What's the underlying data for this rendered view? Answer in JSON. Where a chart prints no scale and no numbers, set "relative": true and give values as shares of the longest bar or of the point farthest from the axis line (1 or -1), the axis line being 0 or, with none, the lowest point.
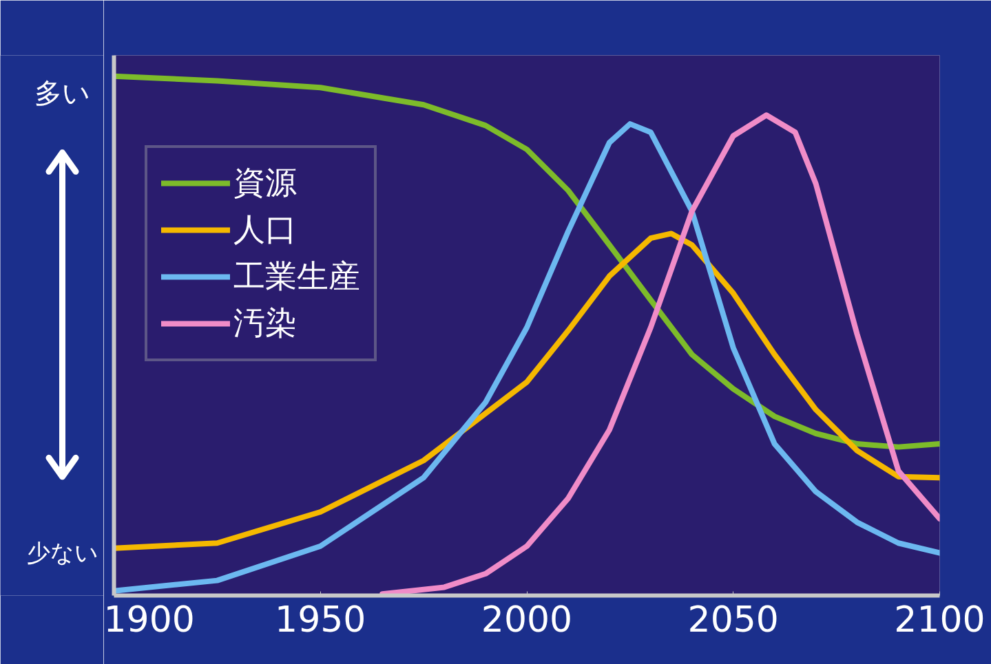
{
  "chart_data": {
    "type": "line",
    "relative": true,
    "xlim": [
      1900,
      2100
    ],
    "xticks": [
      1900,
      1950,
      2000,
      2050,
      2100
    ],
    "legend": "top left",
    "grid": false,
    "marker": "none",
    "line_style": "solid",
    "annotations": [
      "多い",
      "少ない"
    ],
    "series": [
      {
        "name": "資源",
        "color": "#7dbb2a",
        "x": [
          1900,
          1925,
          1950,
          1975,
          1990,
          2000,
          2010,
          2020,
          2030,
          2040,
          2050,
          2060,
          2070,
          2080,
          2090,
          2100
        ],
        "values": [
          1.0,
          0.991,
          0.978,
          0.945,
          0.905,
          0.859,
          0.78,
          0.675,
          0.569,
          0.464,
          0.398,
          0.345,
          0.312,
          0.292,
          0.286,
          0.292
        ]
      },
      {
        "name": "人口",
        "color": "#f5b800",
        "x": [
          1900,
          1925,
          1950,
          1975,
          2000,
          2010,
          2020,
          2030,
          2035,
          2040,
          2050,
          2060,
          2070,
          2080,
          2090,
          2100
        ],
        "values": [
          0.091,
          0.101,
          0.161,
          0.26,
          0.411,
          0.51,
          0.615,
          0.688,
          0.697,
          0.675,
          0.582,
          0.464,
          0.358,
          0.279,
          0.229,
          0.227
        ]
      },
      {
        "name": "工業生産",
        "color": "#6cb8f0",
        "x": [
          1900,
          1925,
          1950,
          1975,
          1990,
          2000,
          2010,
          2020,
          2025,
          2030,
          2040,
          2050,
          2060,
          2070,
          2080,
          2090,
          2100
        ],
        "values": [
          0.009,
          0.029,
          0.095,
          0.227,
          0.372,
          0.516,
          0.701,
          0.872,
          0.908,
          0.892,
          0.74,
          0.477,
          0.292,
          0.2,
          0.141,
          0.101,
          0.082
        ]
      },
      {
        "name": "汚染",
        "color": "#f08cc8",
        "x": [
          1965,
          1980,
          1990,
          2000,
          2010,
          2020,
          2030,
          2040,
          2050,
          2058,
          2065,
          2070,
          2080,
          2090,
          2100
        ],
        "values": [
          0.003,
          0.016,
          0.042,
          0.095,
          0.187,
          0.319,
          0.516,
          0.74,
          0.885,
          0.925,
          0.892,
          0.793,
          0.503,
          0.24,
          0.148
        ]
      }
    ]
  }
}
